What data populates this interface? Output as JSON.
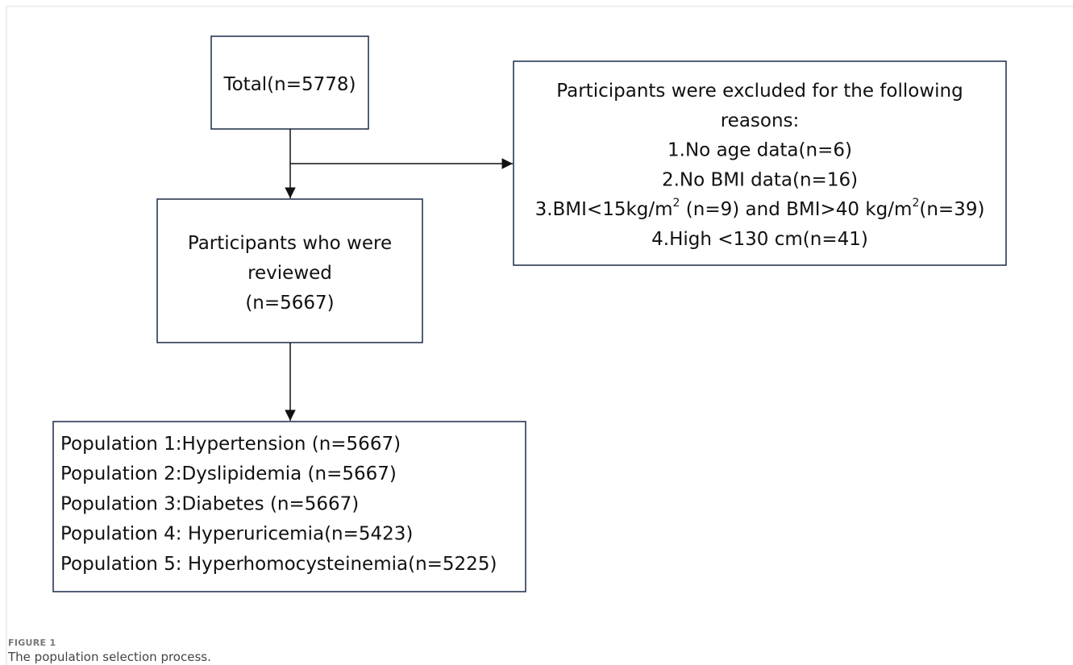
{
  "total": {
    "lines": [
      [
        {
          "text": "Total(n=5778)"
        }
      ]
    ]
  },
  "excluded": {
    "lines": [
      [
        {
          "text": "Participants were excluded for the following"
        }
      ],
      [
        {
          "text": "reasons:"
        }
      ],
      [
        {
          "text": "1.No age data(n=6)"
        }
      ],
      [
        {
          "text": "2.No BMI data(n=16)"
        }
      ],
      [
        {
          "text": "3.BMI<15kg/m"
        },
        {
          "text": "2",
          "sup": true
        },
        {
          "text": " (n=9) and BMI>40 kg/m"
        },
        {
          "text": "2",
          "sup": true
        },
        {
          "text": "(n=39)"
        }
      ],
      [
        {
          "text": "4.High <130 cm(n=41)"
        }
      ]
    ]
  },
  "reviewed": {
    "lines": [
      [
        {
          "text": "Participants who were"
        }
      ],
      [
        {
          "text": "reviewed"
        }
      ],
      [
        {
          "text": "(n=5667)"
        }
      ]
    ]
  },
  "populations": {
    "lines": [
      [
        {
          "text": "Population 1:Hypertension (n=5667)"
        }
      ],
      [
        {
          "text": "Population 2:Dyslipidemia (n=5667)"
        }
      ],
      [
        {
          "text": "Population 3:Diabetes (n=5667)"
        }
      ],
      [
        {
          "text": "Population 4: Hyperuricemia(n=5423)"
        }
      ],
      [
        {
          "text": "Population 5: Hyperhomocysteinemia(n=5225)"
        }
      ]
    ]
  },
  "caption": {
    "label": "FIGURE 1",
    "text": "The population selection process."
  }
}
